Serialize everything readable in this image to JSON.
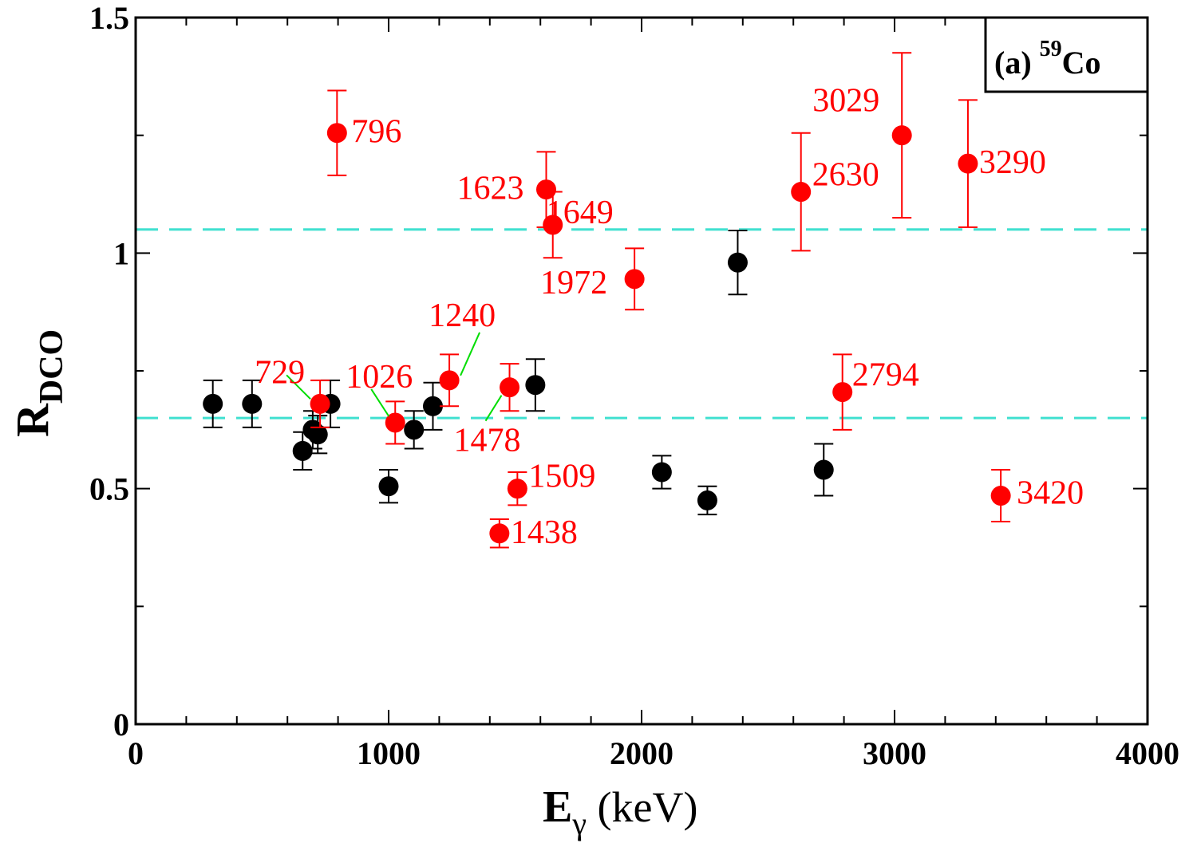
{
  "chart_data": {
    "type": "scatter",
    "xlabel": {
      "main": "E",
      "sub": "γ",
      "unit": " (keV)"
    },
    "ylabel": {
      "main": "R",
      "sub": "DCO"
    },
    "xlim": [
      0,
      4000
    ],
    "ylim": [
      0,
      1.5
    ],
    "x_ticks": [
      0,
      1000,
      2000,
      3000,
      4000
    ],
    "x_tick_labels": [
      "0",
      "1000",
      "2000",
      "3000",
      "4000"
    ],
    "y_ticks": [
      0,
      0.5,
      1,
      1.5
    ],
    "y_tick_labels": [
      "0",
      "0.5",
      "1",
      "1.5"
    ],
    "x_minor_step": 200,
    "y_minor_step": 0.25,
    "panel_label": {
      "prefix": "(a) ",
      "mass": "59",
      "element": "Co"
    },
    "reference_lines": [
      {
        "y": 1.05,
        "color": "#40e0d0",
        "style": "dashed"
      },
      {
        "y": 0.65,
        "color": "#40e0d0",
        "style": "dashed"
      }
    ],
    "colors": {
      "black_series": "#000000",
      "red_series": "#ff0000",
      "leader": "#00dd00"
    },
    "series": [
      {
        "color": "#000000",
        "points": [
          {
            "x": 305,
            "y": 0.68,
            "err": 0.05
          },
          {
            "x": 460,
            "y": 0.68,
            "err": 0.05
          },
          {
            "x": 660,
            "y": 0.58,
            "err": 0.04
          },
          {
            "x": 700,
            "y": 0.625,
            "err": 0.04
          },
          {
            "x": 720,
            "y": 0.615,
            "err": 0.04
          },
          {
            "x": 770,
            "y": 0.68,
            "err": 0.05
          },
          {
            "x": 1000,
            "y": 0.505,
            "err": 0.035
          },
          {
            "x": 1100,
            "y": 0.625,
            "err": 0.04
          },
          {
            "x": 1175,
            "y": 0.675,
            "err": 0.05
          },
          {
            "x": 1580,
            "y": 0.72,
            "err": 0.055
          },
          {
            "x": 2080,
            "y": 0.535,
            "err": 0.035
          },
          {
            "x": 2260,
            "y": 0.475,
            "err": 0.03
          },
          {
            "x": 2380,
            "y": 0.98,
            "err": 0.068
          },
          {
            "x": 2720,
            "y": 0.54,
            "err": 0.055
          }
        ]
      },
      {
        "color": "#ff0000",
        "points": [
          {
            "x": 729,
            "y": 0.68,
            "err": 0.05,
            "label": "729"
          },
          {
            "x": 796,
            "y": 1.255,
            "err": 0.09,
            "label": "796"
          },
          {
            "x": 1026,
            "y": 0.64,
            "err": 0.045,
            "label": "1026"
          },
          {
            "x": 1240,
            "y": 0.73,
            "err": 0.055,
            "label": "1240"
          },
          {
            "x": 1438,
            "y": 0.405,
            "err": 0.03,
            "label": "1438"
          },
          {
            "x": 1478,
            "y": 0.715,
            "err": 0.05,
            "label": "1478"
          },
          {
            "x": 1509,
            "y": 0.5,
            "err": 0.035,
            "label": "1509"
          },
          {
            "x": 1623,
            "y": 1.135,
            "err": 0.08,
            "label": "1623"
          },
          {
            "x": 1649,
            "y": 1.06,
            "err": 0.07,
            "label": "1649"
          },
          {
            "x": 1972,
            "y": 0.945,
            "err": 0.065,
            "label": "1972"
          },
          {
            "x": 2630,
            "y": 1.13,
            "err": 0.125,
            "label": "2630"
          },
          {
            "x": 2794,
            "y": 0.705,
            "err": 0.08,
            "label": "2794"
          },
          {
            "x": 3029,
            "y": 1.25,
            "err": 0.175,
            "label": "3029"
          },
          {
            "x": 3290,
            "y": 1.19,
            "err": 0.135,
            "label": "3290"
          },
          {
            "x": 3420,
            "y": 0.485,
            "err": 0.055,
            "label": "3420"
          }
        ]
      }
    ]
  }
}
